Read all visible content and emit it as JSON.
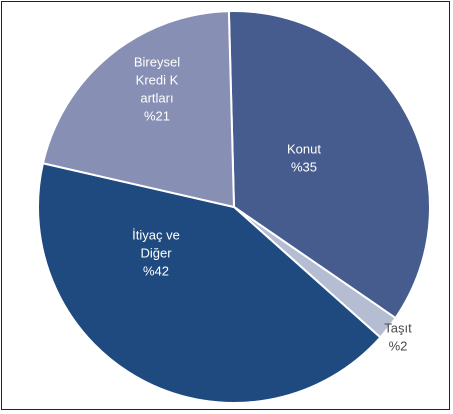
{
  "chart_data": {
    "type": "pie",
    "title": "",
    "slices": [
      {
        "label_lines": [
          "Konut",
          "%35"
        ],
        "value": 35,
        "color": "#465c8f",
        "label_color": "#ffffff",
        "label_position": "inside"
      },
      {
        "label_lines": [
          "Taşıt",
          "%2"
        ],
        "value": 2,
        "color": "#b5bdd3",
        "label_color": "#4a4a4a",
        "label_position": "outside"
      },
      {
        "label_lines": [
          "İtiyaç ve",
          "Diğer",
          "%42"
        ],
        "value": 42,
        "color": "#1f4a80",
        "label_color": "#ffffff",
        "label_position": "inside"
      },
      {
        "label_lines": [
          "Bireysel",
          "Kredi K",
          "artları",
          "%21"
        ],
        "value": 21,
        "color": "#8790b4",
        "label_color": "#ffffff",
        "label_position": "inside"
      }
    ],
    "legend": "none",
    "slice_separator_color": "#ffffff"
  }
}
